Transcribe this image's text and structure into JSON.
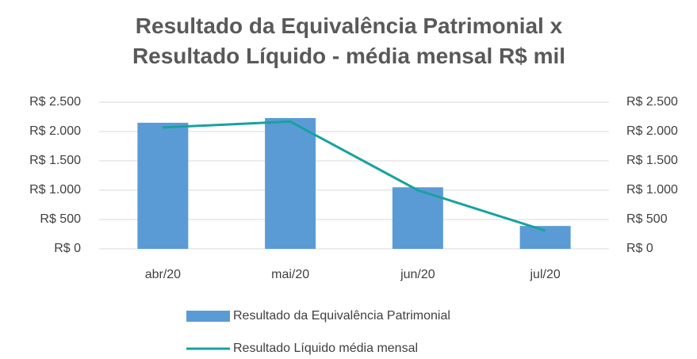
{
  "chart_data": {
    "type": "bar-line",
    "title": "Resultado da Equivalência Patrimonial x Resultado Líquido - média mensal R$ mil",
    "categories": [
      "abr/20",
      "mai/20",
      "jun/20",
      "jul/20"
    ],
    "series": [
      {
        "name": "Resultado da Equivalência Patrimonial",
        "type": "bar",
        "color": "#5b9bd5",
        "values": [
          2150,
          2230,
          1050,
          390
        ]
      },
      {
        "name": "Resultado Líquido média mensal",
        "type": "line",
        "color": "#17a2a0",
        "axis": "y2",
        "values": [
          2070,
          2170,
          1000,
          310
        ]
      }
    ],
    "ylim": [
      0,
      2500
    ],
    "yticks": [
      {
        "value": 0,
        "label": "R$ 0"
      },
      {
        "value": 500,
        "label": "R$ 500"
      },
      {
        "value": 1000,
        "label": "R$ 1.000"
      },
      {
        "value": 1500,
        "label": "R$ 1.500"
      },
      {
        "value": 2000,
        "label": "R$ 2.000"
      },
      {
        "value": 2500,
        "label": "R$ 2.500"
      }
    ],
    "y2lim": [
      0,
      2500
    ],
    "y2ticks": [
      {
        "value": 0,
        "label": "R$ 0"
      },
      {
        "value": 500,
        "label": "R$ 500"
      },
      {
        "value": 1000,
        "label": "R$ 1.000"
      },
      {
        "value": 1500,
        "label": "R$ 1.500"
      },
      {
        "value": 2000,
        "label": "R$ 2.000"
      },
      {
        "value": 2500,
        "label": "R$ 2.500"
      }
    ],
    "grid": true,
    "legend": "bottom"
  }
}
